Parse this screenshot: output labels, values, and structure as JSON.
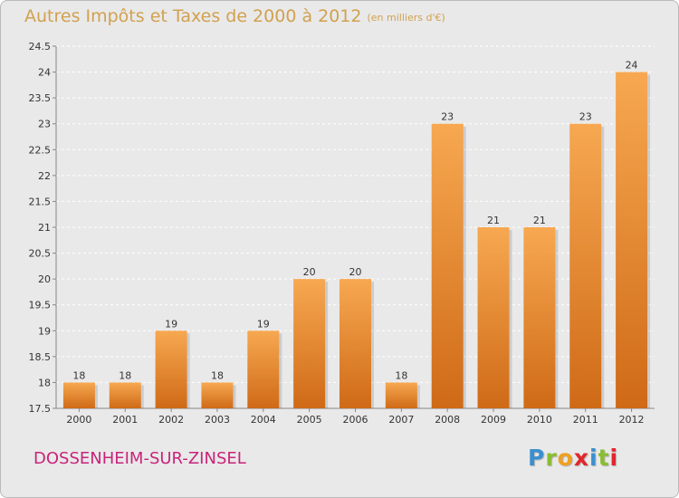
{
  "title": "Autres Impôts et Taxes de 2000 à 2012",
  "unit": "(en milliers d'€)",
  "city": "DOSSENHEIM-SUR-ZINSEL",
  "logo": {
    "letters": [
      "P",
      "r",
      "o",
      "x",
      "i",
      "t",
      "i"
    ],
    "colors": [
      "#3a8fd0",
      "#8abd2f",
      "#f0a020",
      "#e2262b",
      "#3a8fd0",
      "#8abd2f",
      "#e2262b"
    ]
  },
  "colors": {
    "bar_top": "#f7a851",
    "bar_bottom": "#cf6a17",
    "grid": "#ffffff",
    "title": "#d1a14f",
    "city": "#c8247a"
  },
  "chart_data": {
    "type": "bar",
    "categories": [
      "2000",
      "2001",
      "2002",
      "2003",
      "2004",
      "2005",
      "2006",
      "2007",
      "2008",
      "2009",
      "2010",
      "2011",
      "2012"
    ],
    "values": [
      18,
      18,
      19,
      18,
      19,
      20,
      20,
      18,
      23,
      21,
      21,
      23,
      24
    ],
    "labels": [
      "18",
      "18",
      "19",
      "18",
      "19",
      "20",
      "20",
      "18",
      "23",
      "21",
      "21",
      "23",
      "24"
    ],
    "ylim": [
      17.5,
      24.5
    ],
    "yticks": [
      "17.5",
      "18",
      "18.5",
      "19",
      "19.5",
      "20",
      "20.5",
      "21",
      "21.5",
      "22",
      "22.5",
      "23",
      "23.5",
      "24",
      "24.5"
    ],
    "grid": true
  }
}
